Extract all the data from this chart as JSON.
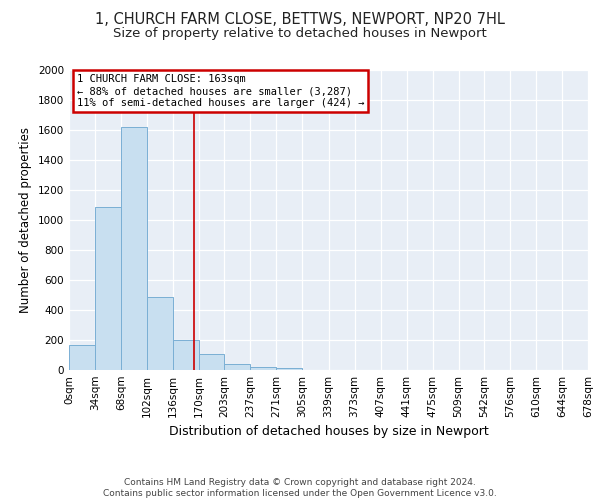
{
  "title": "1, CHURCH FARM CLOSE, BETTWS, NEWPORT, NP20 7HL",
  "subtitle": "Size of property relative to detached houses in Newport",
  "xlabel": "Distribution of detached houses by size in Newport",
  "ylabel": "Number of detached properties",
  "bin_edges": [
    0,
    34,
    68,
    102,
    136,
    170,
    203,
    237,
    271,
    305,
    339,
    373,
    407,
    441,
    475,
    509,
    542,
    576,
    610,
    644,
    678
  ],
  "bin_counts": [
    165,
    1085,
    1620,
    490,
    200,
    105,
    40,
    20,
    15,
    0,
    0,
    0,
    0,
    0,
    0,
    0,
    0,
    0,
    0,
    0
  ],
  "property_size": 163,
  "bar_facecolor": "#c8dff0",
  "bar_edgecolor": "#7aafd4",
  "vline_color": "#cc0000",
  "annotation_text": "1 CHURCH FARM CLOSE: 163sqm\n← 88% of detached houses are smaller (3,287)\n11% of semi-detached houses are larger (424) →",
  "annotation_box_edgecolor": "#cc0000",
  "annotation_box_facecolor": "#ffffff",
  "ylim": [
    0,
    2000
  ],
  "yticks": [
    0,
    200,
    400,
    600,
    800,
    1000,
    1200,
    1400,
    1600,
    1800,
    2000
  ],
  "bg_color": "#ffffff",
  "axes_bg_color": "#e8eef6",
  "footer_line1": "Contains HM Land Registry data © Crown copyright and database right 2024.",
  "footer_line2": "Contains public sector information licensed under the Open Government Licence v3.0.",
  "title_fontsize": 10.5,
  "subtitle_fontsize": 9.5,
  "xlabel_fontsize": 9,
  "ylabel_fontsize": 8.5,
  "tick_fontsize": 7.5,
  "footer_fontsize": 6.5
}
